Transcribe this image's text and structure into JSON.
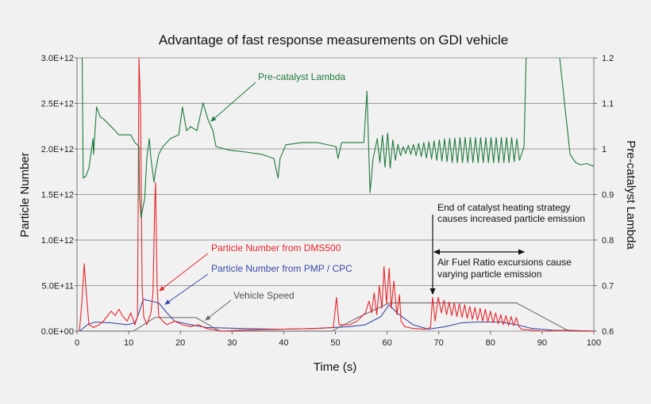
{
  "chart_data": {
    "type": "line",
    "title": "Advantage of fast response measurements on GDI vehicle",
    "xlabel": "Time (s)",
    "ylabel": "Particle Number",
    "y2label": "Pre-catalyst Lambda",
    "xlim": [
      0,
      100
    ],
    "ylim": [
      0,
      3000000000000.0
    ],
    "y2lim": [
      0.6,
      1.2
    ],
    "grid": true,
    "xticks": [
      "0",
      "10",
      "20",
      "30",
      "40",
      "50",
      "60",
      "70",
      "80",
      "90",
      "100"
    ],
    "yticks": [
      "0.0E+00",
      "5.0E+11",
      "1.0E+12",
      "1.5E+12",
      "2.0E+12",
      "2.5E+12",
      "3.0E+12"
    ],
    "y2ticks": [
      "0.6",
      "0.7",
      "0.8",
      "0.9",
      "1",
      "1.1",
      "1.2"
    ],
    "series": [
      {
        "name": "Pre-catalyst Lambda",
        "axis": "right",
        "color": "#1e7a3c",
        "points": [
          [
            0.9,
            1.2
          ],
          [
            1.0,
            1.2
          ],
          [
            1.2,
            0.936
          ],
          [
            1.7,
            0.94
          ],
          [
            2.3,
            0.958
          ],
          [
            3.1,
            1.023
          ],
          [
            3.2,
            0.988
          ],
          [
            3.8,
            1.092
          ],
          [
            4.5,
            1.07
          ],
          [
            5.1,
            1.066
          ],
          [
            6.6,
            1.049
          ],
          [
            8.1,
            1.031
          ],
          [
            10.4,
            1.031
          ],
          [
            11.2,
            1.014
          ],
          [
            12.0,
            1.005
          ],
          [
            12.1,
            0.892
          ],
          [
            12.4,
            0.849
          ],
          [
            13.1,
            0.892
          ],
          [
            13.5,
            0.979
          ],
          [
            14.0,
            1.023
          ],
          [
            14.3,
            0.979
          ],
          [
            14.9,
            0.927
          ],
          [
            15.2,
            0.953
          ],
          [
            15.8,
            0.988
          ],
          [
            16.6,
            1.005
          ],
          [
            18.1,
            1.023
          ],
          [
            19.7,
            1.031
          ],
          [
            20.4,
            1.092
          ],
          [
            21.2,
            1.04
          ],
          [
            22.0,
            1.049
          ],
          [
            23.2,
            1.04
          ],
          [
            24.4,
            1.101
          ],
          [
            25.3,
            1.066
          ],
          [
            26.3,
            1.04
          ],
          [
            26.9,
            1.005
          ],
          [
            29.6,
            0.997
          ],
          [
            32.7,
            0.993
          ],
          [
            35.8,
            0.988
          ],
          [
            38.1,
            0.979
          ],
          [
            38.9,
            0.936
          ],
          [
            39.3,
            0.979
          ],
          [
            40.4,
            1.009
          ],
          [
            43.5,
            1.014
          ],
          [
            46.5,
            1.014
          ],
          [
            50.1,
            1.005
          ],
          [
            50.5,
            0.979
          ],
          [
            51.2,
            1.014
          ],
          [
            54.2,
            1.014
          ],
          [
            55.5,
            1.014
          ],
          [
            56.1,
            1.127
          ],
          [
            56.4,
            1.014
          ],
          [
            56.7,
            0.904
          ],
          [
            57.3,
            0.979
          ],
          [
            58.1,
            1.023
          ],
          [
            58.6,
            0.97
          ],
          [
            59.1,
            1.03
          ],
          [
            59.6,
            0.96
          ],
          [
            60.1,
            1.035
          ],
          [
            60.6,
            0.958
          ],
          [
            61.1,
            1.02
          ],
          [
            61.6,
            0.975
          ],
          [
            62.1,
            1.01
          ],
          [
            62.6,
            0.985
          ],
          [
            63.1,
            1.005
          ],
          [
            63.6,
            0.99
          ],
          [
            64.1,
            1.008
          ],
          [
            64.6,
            0.988
          ],
          [
            65.1,
            1.01
          ],
          [
            65.6,
            0.985
          ],
          [
            66.1,
            1.012
          ],
          [
            66.6,
            0.983
          ],
          [
            67.1,
            1.014
          ],
          [
            67.6,
            0.98
          ],
          [
            68.1,
            1.016
          ],
          [
            68.6,
            0.978
          ],
          [
            69.1,
            1.018
          ],
          [
            69.6,
            0.975
          ],
          [
            70.1,
            1.02
          ],
          [
            70.6,
            0.973
          ],
          [
            71.1,
            1.022
          ],
          [
            71.6,
            0.972
          ],
          [
            72.1,
            1.023
          ],
          [
            72.6,
            0.97
          ],
          [
            73.1,
            1.024
          ],
          [
            73.6,
            0.97
          ],
          [
            74.1,
            1.025
          ],
          [
            74.6,
            0.97
          ],
          [
            75.1,
            1.025
          ],
          [
            75.6,
            0.97
          ],
          [
            76.1,
            1.025
          ],
          [
            76.6,
            0.97
          ],
          [
            77.1,
            1.025
          ],
          [
            77.6,
            0.97
          ],
          [
            78.1,
            1.025
          ],
          [
            78.6,
            0.97
          ],
          [
            79.1,
            1.025
          ],
          [
            79.6,
            0.97
          ],
          [
            80.1,
            1.025
          ],
          [
            80.6,
            0.97
          ],
          [
            81.1,
            1.025
          ],
          [
            81.6,
            0.97
          ],
          [
            82.1,
            1.025
          ],
          [
            82.6,
            0.97
          ],
          [
            83.1,
            1.025
          ],
          [
            83.6,
            0.97
          ],
          [
            84.1,
            1.025
          ],
          [
            84.6,
            0.972
          ],
          [
            85.1,
            1.022
          ],
          [
            85.6,
            0.975
          ],
          [
            86.5,
            1.005
          ],
          [
            86.9,
            1.2
          ]
        ]
      },
      {
        "name": "Pre-catalyst Lambda (tail)",
        "axis": "right",
        "color": "#1e7a3c",
        "points": [
          [
            93.4,
            1.2
          ],
          [
            94.5,
            1.083
          ],
          [
            95.4,
            0.988
          ],
          [
            96.5,
            0.97
          ],
          [
            97.5,
            0.965
          ],
          [
            98.5,
            0.968
          ],
          [
            100,
            0.962
          ]
        ]
      },
      {
        "name": "Particle Number from DMS500",
        "axis": "left",
        "color": "#e8262b",
        "points": [
          [
            0.46,
            0
          ],
          [
            0.9,
            290000000000.0
          ],
          [
            1.4,
            740000000000.0
          ],
          [
            1.8,
            420000000000.0
          ],
          [
            2.3,
            70000000000.0
          ],
          [
            3.2,
            40000000000.0
          ],
          [
            4.3,
            70000000000.0
          ],
          [
            5.1,
            110000000000.0
          ],
          [
            5.8,
            160000000000.0
          ],
          [
            6.6,
            220000000000.0
          ],
          [
            7.4,
            170000000000.0
          ],
          [
            8.1,
            240000000000.0
          ],
          [
            8.9,
            160000000000.0
          ],
          [
            9.7,
            110000000000.0
          ],
          [
            10.4,
            200000000000.0
          ],
          [
            11.2,
            70000000000.0
          ],
          [
            11.7,
            160000000000.0
          ],
          [
            12.0,
            3000000000000.0
          ],
          [
            12.3,
            2400000000000.0
          ],
          [
            12.6,
            500000000000.0
          ],
          [
            12.9,
            160000000000.0
          ],
          [
            13.5,
            70000000000.0
          ],
          [
            14.3,
            200000000000.0
          ],
          [
            14.7,
            420000000000.0
          ],
          [
            15.05,
            1420000000000.0
          ],
          [
            15.2,
            1630000000000.0
          ],
          [
            15.5,
            500000000000.0
          ],
          [
            15.8,
            160000000000.0
          ],
          [
            16.6,
            110000000000.0
          ],
          [
            17.4,
            70000000000.0
          ],
          [
            18.9,
            110000000000.0
          ],
          [
            20.4,
            70000000000.0
          ],
          [
            22.0,
            50000000000.0
          ],
          [
            23.5,
            70000000000.0
          ],
          [
            25.0,
            30000000000.0
          ],
          [
            28.1,
            0
          ],
          [
            31.2,
            10000000000.0
          ],
          [
            38.9,
            20000000000.0
          ],
          [
            46.5,
            30000000000.0
          ],
          [
            49.6,
            40000000000.0
          ],
          [
            50.2,
            370000000000.0
          ],
          [
            50.7,
            70000000000.0
          ],
          [
            52.7,
            70000000000.0
          ],
          [
            54.2,
            110000000000.0
          ],
          [
            55.8,
            200000000000.0
          ],
          [
            56.5,
            330000000000.0
          ],
          [
            57.0,
            200000000000.0
          ],
          [
            57.5,
            420000000000.0
          ],
          [
            58.0,
            180000000000.0
          ],
          [
            58.5,
            500000000000.0
          ],
          [
            59.0,
            250000000000.0
          ],
          [
            59.4,
            710000000000.0
          ],
          [
            59.9,
            300000000000.0
          ],
          [
            60.4,
            690000000000.0
          ],
          [
            60.8,
            250000000000.0
          ],
          [
            61.3,
            550000000000.0
          ],
          [
            61.9,
            180000000000.0
          ],
          [
            62.4,
            400000000000.0
          ],
          [
            62.7,
            110000000000.0
          ],
          [
            63.4,
            50000000000.0
          ],
          [
            65.0,
            30000000000.0
          ],
          [
            67.3,
            20000000000.0
          ],
          [
            68.4,
            40000000000.0
          ],
          [
            68.8,
            370000000000.0
          ],
          [
            69.3,
            110000000000.0
          ],
          [
            69.9,
            370000000000.0
          ],
          [
            70.5,
            200000000000.0
          ],
          [
            71.0,
            340000000000.0
          ],
          [
            71.5,
            180000000000.0
          ],
          [
            72.0,
            320000000000.0
          ],
          [
            72.5,
            170000000000.0
          ],
          [
            73.0,
            310000000000.0
          ],
          [
            73.5,
            160000000000.0
          ],
          [
            74.0,
            300000000000.0
          ],
          [
            74.5,
            150000000000.0
          ],
          [
            75.0,
            290000000000.0
          ],
          [
            75.5,
            140000000000.0
          ],
          [
            76.0,
            270000000000.0
          ],
          [
            76.5,
            130000000000.0
          ],
          [
            77.0,
            260000000000.0
          ],
          [
            77.5,
            120000000000.0
          ],
          [
            78.0,
            250000000000.0
          ],
          [
            78.5,
            110000000000.0
          ],
          [
            79.0,
            240000000000.0
          ],
          [
            79.5,
            100000000000.0
          ],
          [
            80.0,
            220000000000.0
          ],
          [
            80.5,
            90000000000.0
          ],
          [
            81.0,
            200000000000.0
          ],
          [
            81.5,
            80000000000.0
          ],
          [
            82.0,
            180000000000.0
          ],
          [
            82.5,
            70000000000.0
          ],
          [
            83.0,
            170000000000.0
          ],
          [
            83.5,
            60000000000.0
          ],
          [
            84.0,
            160000000000.0
          ],
          [
            84.5,
            60000000000.0
          ],
          [
            85.0,
            150000000000.0
          ],
          [
            85.5,
            50000000000.0
          ],
          [
            86.0,
            20000000000.0
          ],
          [
            90,
            0
          ],
          [
            95,
            10000000000.0
          ],
          [
            100,
            0
          ]
        ]
      },
      {
        "name": "Particle Number from PMP / CPC",
        "axis": "left",
        "color": "#3a4aa8",
        "points": [
          [
            0.5,
            0
          ],
          [
            2,
            70000000000.0
          ],
          [
            3.5,
            100000000000.0
          ],
          [
            6.6,
            90000000000.0
          ],
          [
            9.7,
            70000000000.0
          ],
          [
            11.2,
            90000000000.0
          ],
          [
            12,
            200000000000.0
          ],
          [
            12.8,
            350000000000.0
          ],
          [
            14.3,
            330000000000.0
          ],
          [
            15.8,
            310000000000.0
          ],
          [
            17.4,
            200000000000.0
          ],
          [
            18.9,
            110000000000.0
          ],
          [
            22,
            70000000000.0
          ],
          [
            25,
            40000000000.0
          ],
          [
            31.2,
            30000000000.0
          ],
          [
            38.9,
            20000000000.0
          ],
          [
            46.5,
            30000000000.0
          ],
          [
            49.6,
            40000000000.0
          ],
          [
            52.7,
            50000000000.0
          ],
          [
            55.8,
            70000000000.0
          ],
          [
            58.8,
            160000000000.0
          ],
          [
            60.4,
            290000000000.0
          ],
          [
            61.9,
            200000000000.0
          ],
          [
            65,
            70000000000.0
          ],
          [
            68,
            20000000000.0
          ],
          [
            69,
            30000000000.0
          ],
          [
            71.3,
            50000000000.0
          ],
          [
            74.3,
            90000000000.0
          ],
          [
            77.4,
            100000000000.0
          ],
          [
            82,
            100000000000.0
          ],
          [
            85,
            70000000000.0
          ],
          [
            88,
            30000000000.0
          ],
          [
            92,
            10000000000.0
          ],
          [
            100,
            0
          ]
        ]
      },
      {
        "name": "Vehicle Speed",
        "axis": "left",
        "color": "#777777",
        "points": [
          [
            0,
            0
          ],
          [
            10.9,
            0
          ],
          [
            15.1,
            150000000000.0
          ],
          [
            23,
            150000000000.0
          ],
          [
            27.6,
            0
          ],
          [
            49.3,
            0
          ],
          [
            54,
            140000000000.0
          ],
          [
            60.4,
            310000000000.0
          ],
          [
            85,
            310000000000.0
          ],
          [
            95.2,
            0
          ],
          [
            100,
            0
          ]
        ]
      }
    ],
    "annotations": {
      "lambda": "Pre-catalyst Lambda",
      "dms": "Particle Number from DMS500",
      "pmp": "Particle Number from PMP / CPC",
      "speed": "Vehicle Speed",
      "catalyst_line1": "End of catalyst heating strategy",
      "catalyst_line2": "causes increased particle emission",
      "afr_line1": "Air Fuel Ratio excursions cause",
      "afr_line2": "varying particle emission"
    }
  }
}
